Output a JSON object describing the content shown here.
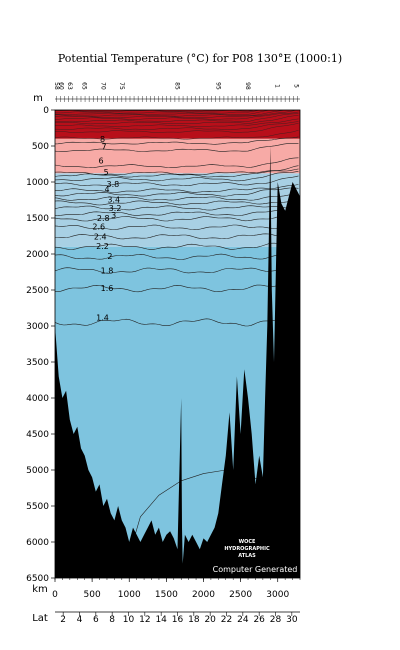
{
  "chart_data": {
    "type": "contour-section",
    "title": "Potential Temperature (°C) for P08 130°E (1000:1)",
    "y_unit_label": "m",
    "x_unit_label": "km",
    "lat_label": "Lat",
    "y_ticks": [
      0,
      500,
      1000,
      1500,
      2000,
      2500,
      3000,
      3500,
      4000,
      4500,
      5000,
      5500,
      6000,
      6500
    ],
    "ylim": [
      0,
      6500
    ],
    "x_ticks": [
      0,
      500,
      1000,
      1500,
      2000,
      2500,
      3000
    ],
    "xlim": [
      0,
      3300
    ],
    "lat_ticks": [
      {
        "km": 110,
        "label": "2"
      },
      {
        "km": 330,
        "label": "4"
      },
      {
        "km": 550,
        "label": "6"
      },
      {
        "km": 770,
        "label": "8"
      },
      {
        "km": 990,
        "label": "10"
      },
      {
        "km": 1210,
        "label": "12"
      },
      {
        "km": 1430,
        "label": "14"
      },
      {
        "km": 1650,
        "label": "16"
      },
      {
        "km": 1870,
        "label": "18"
      },
      {
        "km": 2090,
        "label": "20"
      },
      {
        "km": 2310,
        "label": "22"
      },
      {
        "km": 2530,
        "label": "24"
      },
      {
        "km": 2750,
        "label": "26"
      },
      {
        "km": 2970,
        "label": "28"
      },
      {
        "km": 3190,
        "label": "30"
      }
    ],
    "station_labels": [
      {
        "km": 30,
        "label": "58"
      },
      {
        "km": 90,
        "label": "60"
      },
      {
        "km": 200,
        "label": "63"
      },
      {
        "km": 400,
        "label": "65"
      },
      {
        "km": 650,
        "label": "70"
      },
      {
        "km": 900,
        "label": "75"
      },
      {
        "km": 1650,
        "label": "85"
      },
      {
        "km": 2200,
        "label": "95"
      },
      {
        "km": 2600,
        "label": "98"
      },
      {
        "km": 3000,
        "label": "1"
      },
      {
        "km": 3250,
        "label": "5"
      }
    ],
    "contour_labels": [
      {
        "value": "8",
        "km": 640,
        "depth": 400
      },
      {
        "value": "7",
        "km": 660,
        "depth": 510
      },
      {
        "value": "6",
        "km": 620,
        "depth": 700
      },
      {
        "value": "5",
        "km": 690,
        "depth": 860
      },
      {
        "value": "4",
        "km": 700,
        "depth": 1100
      },
      {
        "value": "3.8",
        "km": 780,
        "depth": 1030
      },
      {
        "value": "3.4",
        "km": 790,
        "depth": 1240
      },
      {
        "value": "3.2",
        "km": 810,
        "depth": 1360
      },
      {
        "value": "3",
        "km": 790,
        "depth": 1460
      },
      {
        "value": "2.8",
        "km": 650,
        "depth": 1500
      },
      {
        "value": "2.6",
        "km": 590,
        "depth": 1620
      },
      {
        "value": "2.4",
        "km": 610,
        "depth": 1760
      },
      {
        "value": "2.2",
        "km": 640,
        "depth": 1890
      },
      {
        "value": "2",
        "km": 740,
        "depth": 2030
      },
      {
        "value": "1.8",
        "km": 700,
        "depth": 2230
      },
      {
        "value": "1.6",
        "km": 700,
        "depth": 2470
      },
      {
        "value": "1.4",
        "km": 640,
        "depth": 2880
      }
    ],
    "contour_levels": [
      1.4,
      1.6,
      1.8,
      2,
      2.2,
      2.4,
      2.6,
      2.8,
      3,
      3.2,
      3.4,
      3.6,
      3.8,
      4,
      4.5,
      5,
      5.5,
      6,
      6.5,
      7,
      7.5,
      8,
      9,
      10,
      12,
      14,
      16,
      18,
      20,
      22,
      24,
      26,
      28
    ],
    "contour_depth_mean": [
      2950,
      2480,
      2230,
      2040,
      1900,
      1760,
      1630,
      1510,
      1440,
      1360,
      1290,
      1230,
      1170,
      1120,
      1030,
      960,
      910,
      880,
      780,
      560,
      460,
      390,
      300,
      260,
      220,
      180,
      150,
      120,
      95,
      75,
      55,
      35,
      15
    ],
    "bands": [
      {
        "top": 0,
        "bottom": 400,
        "color": "#b80f1a"
      },
      {
        "top": 400,
        "bottom": 880,
        "color": "#f7aaa6"
      },
      {
        "top": 880,
        "bottom": 1900,
        "color": "#a8d0e4"
      },
      {
        "top": 1900,
        "bottom": 6500,
        "color": "#7ec4df"
      }
    ],
    "bottom_depth_km": [
      0,
      50,
      100,
      150,
      200,
      250,
      300,
      350,
      400,
      450,
      500,
      550,
      600,
      650,
      700,
      750,
      800,
      850,
      900,
      950,
      1000,
      1050,
      1100,
      1150,
      1200,
      1250,
      1300,
      1350,
      1400,
      1450,
      1500,
      1550,
      1600,
      1650,
      1700,
      1710,
      1720,
      1750,
      1800,
      1850,
      1900,
      1950,
      2000,
      2050,
      2100,
      2150,
      2200,
      2250,
      2300,
      2350,
      2400,
      2450,
      2500,
      2550,
      2600,
      2650,
      2700,
      2750,
      2800,
      2830,
      2860,
      2880,
      2900,
      2920,
      2950,
      3000,
      3050,
      3100,
      3150,
      3200,
      3250,
      3300
    ],
    "bottom_depth_m": [
      3000,
      3700,
      4000,
      3900,
      4300,
      4500,
      4400,
      4700,
      4800,
      5000,
      5100,
      5300,
      5200,
      5500,
      5400,
      5600,
      5700,
      5500,
      5700,
      5800,
      6000,
      5800,
      5900,
      6000,
      5900,
      5800,
      5700,
      5900,
      5800,
      6000,
      5900,
      5850,
      5950,
      6100,
      4000,
      5800,
      6300,
      5900,
      6000,
      5900,
      6000,
      6100,
      5950,
      6000,
      5900,
      5800,
      5600,
      5200,
      4800,
      4200,
      5000,
      3700,
      4500,
      3600,
      4000,
      4500,
      5200,
      4800,
      5100,
      4000,
      3000,
      1800,
      500,
      2500,
      3500,
      1000,
      1300,
      1400,
      1200,
      1000,
      1100,
      1200
    ],
    "isotherm_deep_level": 1.2,
    "watermark": [
      "WOCE",
      "HYDROGRAPHIC",
      "ATLAS"
    ],
    "watermark_footer": "Computer Generated"
  }
}
